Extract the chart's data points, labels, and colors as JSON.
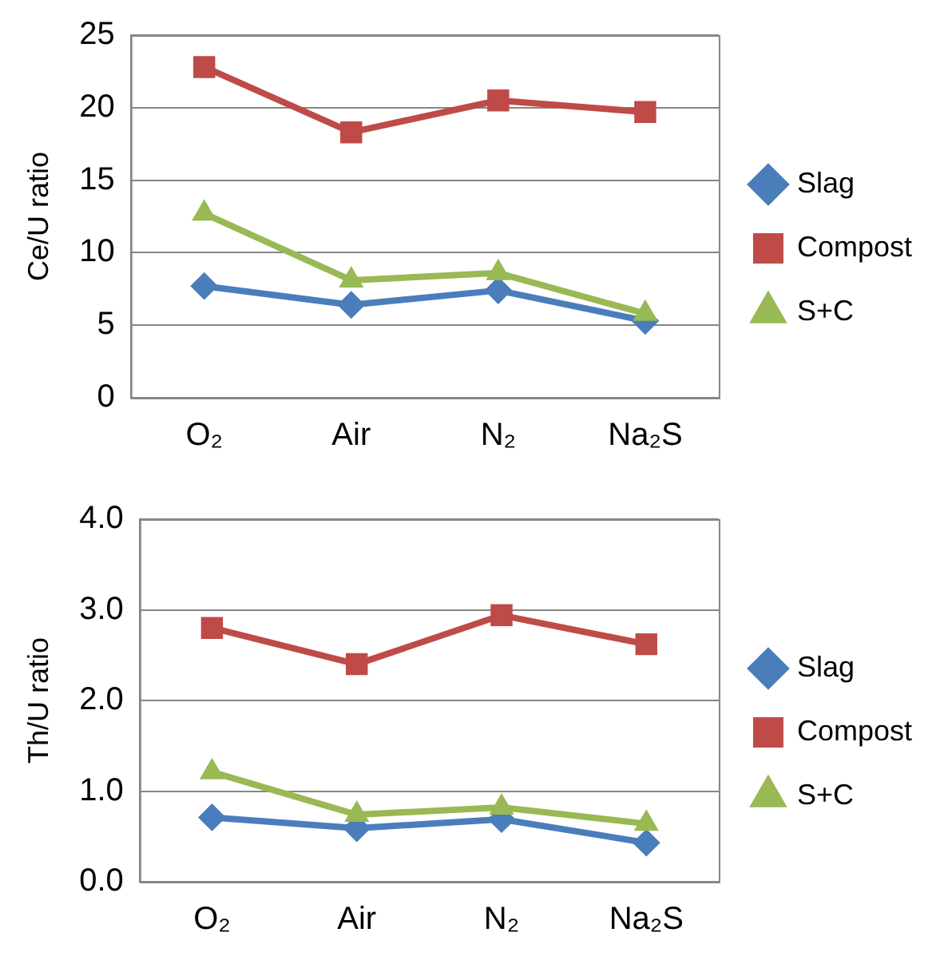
{
  "chart_data": [
    {
      "type": "line",
      "ylabel": "Ce/U ratio",
      "categories": [
        "O₂",
        "Air",
        "N₂",
        "Na₂S"
      ],
      "series": [
        {
          "name": "Slag",
          "color": "#4a7ebb",
          "marker": "diamond",
          "values": [
            7.7,
            6.4,
            7.4,
            5.3
          ]
        },
        {
          "name": "Compost",
          "color": "#be4b48",
          "marker": "square",
          "values": [
            22.8,
            18.3,
            20.5,
            19.7
          ]
        },
        {
          "name": "S+C",
          "color": "#98b954",
          "marker": "triangle",
          "values": [
            12.7,
            8.1,
            8.6,
            5.8
          ]
        }
      ],
      "ylim": [
        0,
        25
      ],
      "yticks": [
        0,
        5,
        10,
        15,
        20,
        25
      ],
      "grid": "y",
      "legend": "right",
      "line_style": "solid"
    },
    {
      "type": "line",
      "ylabel": "Th/U ratio",
      "categories": [
        "O₂",
        "Air",
        "N₂",
        "Na₂S"
      ],
      "series": [
        {
          "name": "Slag",
          "color": "#4a7ebb",
          "marker": "diamond",
          "values": [
            0.71,
            0.59,
            0.69,
            0.43
          ]
        },
        {
          "name": "Compost",
          "color": "#be4b48",
          "marker": "square",
          "values": [
            2.8,
            2.4,
            2.94,
            2.62
          ]
        },
        {
          "name": "S+C",
          "color": "#98b954",
          "marker": "triangle",
          "values": [
            1.21,
            0.74,
            0.82,
            0.64
          ]
        }
      ],
      "ylim": [
        0,
        4
      ],
      "yticks": [
        {
          "value": 0,
          "label": "0.0"
        },
        {
          "value": 1,
          "label": "1.0"
        },
        {
          "value": 2,
          "label": "2.0"
        },
        {
          "value": 3,
          "label": "3.0"
        },
        {
          "value": 4,
          "label": "4.0"
        }
      ],
      "grid": "y",
      "legend": "right",
      "line_style": "solid"
    }
  ]
}
